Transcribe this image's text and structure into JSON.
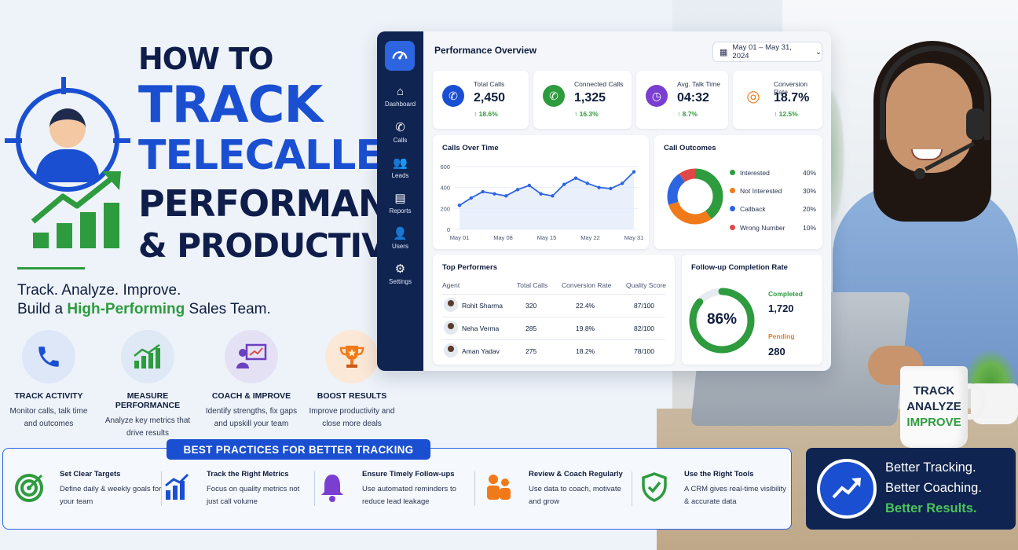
{
  "title": {
    "line1": "HOW TO",
    "line2": "TRACK",
    "line3": "TELECALLER",
    "line4": "PERFORMANCE",
    "line5": "& PRODUCTIVITY"
  },
  "tagline": {
    "line1": "Track. Analyze. Improve.",
    "line2_pre": "Build a ",
    "line2_hl": "High-Performing",
    "line2_post": " Sales Team."
  },
  "features": [
    {
      "title": "TRACK ACTIVITY",
      "desc1": "Monitor calls, talk time",
      "desc2": "and outcomes",
      "icon": "phone-icon",
      "color": "#1a4fd1"
    },
    {
      "title": "MEASURE PERFORMANCE",
      "desc1": "Analyze key metrics that",
      "desc2": "drive results",
      "icon": "bar-chart-icon",
      "color": "#2e9b3e"
    },
    {
      "title": "COACH & IMPROVE",
      "desc1": "Identify strengths, fix gaps",
      "desc2": "and upskill your team",
      "icon": "coach-icon",
      "color": "#6a3fc0"
    },
    {
      "title": "BOOST RESULTS",
      "desc1": "Improve productivity and",
      "desc2": "close more deals",
      "icon": "trophy-icon",
      "color": "#f07a1a"
    }
  ],
  "dashboard": {
    "sidebar": [
      {
        "label": "Dashboard",
        "icon": "home-icon"
      },
      {
        "label": "Calls",
        "icon": "phone-icon"
      },
      {
        "label": "Leads",
        "icon": "users-icon"
      },
      {
        "label": "Reports",
        "icon": "report-icon"
      },
      {
        "label": "Users",
        "icon": "user-icon"
      },
      {
        "label": "Settings",
        "icon": "gear-icon"
      }
    ],
    "title": "Performance Overview",
    "date_range": "May 01 – May 31, 2024",
    "kpis": [
      {
        "label": "Total Calls",
        "value": "2,450",
        "delta": "↑ 18.6%",
        "icon": "phone-icon",
        "color": "#1a4fd1"
      },
      {
        "label": "Connected Calls",
        "value": "1,325",
        "delta": "↑ 16.3%",
        "icon": "phone-connected-icon",
        "color": "#2e9b3e"
      },
      {
        "label": "Avg. Talk Time",
        "value": "04:32",
        "delta": "↑ 8.7%",
        "icon": "clock-icon",
        "color": "#7a3fd0"
      },
      {
        "label": "Conversion Rate",
        "value": "18.7%",
        "delta": "↑ 12.5%",
        "icon": "target-icon",
        "color": "#f07a1a"
      }
    ],
    "calls_over_time": {
      "title": "Calls Over Time",
      "y_ticks": [
        "600",
        "400",
        "200",
        "0"
      ],
      "x_ticks": [
        "May 01",
        "May 08",
        "May 15",
        "May 22",
        "May 31"
      ]
    },
    "call_outcomes": {
      "title": "Call Outcomes",
      "items": [
        {
          "label": "Interested",
          "pct": "40%",
          "color": "#2e9b3e"
        },
        {
          "label": "Not Interested",
          "pct": "30%",
          "color": "#f07a1a"
        },
        {
          "label": "Callback",
          "pct": "20%",
          "color": "#2d64e0"
        },
        {
          "label": "Wrong Number",
          "pct": "10%",
          "color": "#e04848"
        }
      ]
    },
    "top_performers": {
      "title": "Top Performers",
      "headers": [
        "Agent",
        "Total Calls",
        "Conversion Rate",
        "Quality Score"
      ],
      "rows": [
        {
          "name": "Rohit Sharma",
          "calls": "320",
          "conv": "22.4%",
          "quality": "87/100"
        },
        {
          "name": "Neha Verma",
          "calls": "285",
          "conv": "19.8%",
          "quality": "82/100"
        },
        {
          "name": "Aman Yadav",
          "calls": "275",
          "conv": "18.2%",
          "quality": "78/100"
        }
      ]
    },
    "followup": {
      "title": "Follow-up Completion Rate",
      "percent": "86%",
      "completed_label": "Completed",
      "completed_value": "1,720",
      "pending_label": "Pending",
      "pending_value": "280"
    }
  },
  "best_practices": {
    "heading": "BEST PRACTICES FOR BETTER TRACKING",
    "items": [
      {
        "title": "Set Clear Targets",
        "desc": "Define daily & weekly goals for your team",
        "icon": "target-icon"
      },
      {
        "title": "Track the Right Metrics",
        "desc": "Focus on quality metrics not just call volume",
        "icon": "bar-chart-icon"
      },
      {
        "title": "Ensure Timely Follow-ups",
        "desc": "Use automated reminders to reduce lead leakage",
        "icon": "bell-icon"
      },
      {
        "title": "Review & Coach Regularly",
        "desc": "Use data to coach, motivate and grow",
        "icon": "team-icon"
      },
      {
        "title": "Use the Right Tools",
        "desc": "A CRM gives real-time visibility & accurate data",
        "icon": "shield-check-icon"
      }
    ]
  },
  "better": {
    "line1": "Better Tracking.",
    "line2": "Better Coaching.",
    "line3": "Better Results."
  },
  "mug": {
    "line1": "TRACK",
    "line2": "ANALYZE",
    "line3": "IMPROVE"
  },
  "chart_data": [
    {
      "type": "line",
      "title": "Calls Over Time",
      "x": [
        "May 01",
        "May 03",
        "May 05",
        "May 07",
        "May 09",
        "May 11",
        "May 13",
        "May 15",
        "May 17",
        "May 19",
        "May 21",
        "May 23",
        "May 25",
        "May 27",
        "May 29",
        "May 31"
      ],
      "values": [
        230,
        300,
        360,
        340,
        320,
        380,
        420,
        340,
        320,
        430,
        490,
        440,
        400,
        390,
        440,
        550
      ],
      "ylim": [
        0,
        600
      ],
      "y_ticks": [
        0,
        200,
        400,
        600
      ],
      "grid": true
    },
    {
      "type": "pie",
      "title": "Call Outcomes",
      "categories": [
        "Interested",
        "Not Interested",
        "Callback",
        "Wrong Number"
      ],
      "values": [
        40,
        30,
        20,
        10
      ]
    },
    {
      "type": "pie",
      "title": "Follow-up Completion Rate",
      "categories": [
        "Completed",
        "Pending"
      ],
      "values": [
        1720,
        280
      ]
    }
  ]
}
